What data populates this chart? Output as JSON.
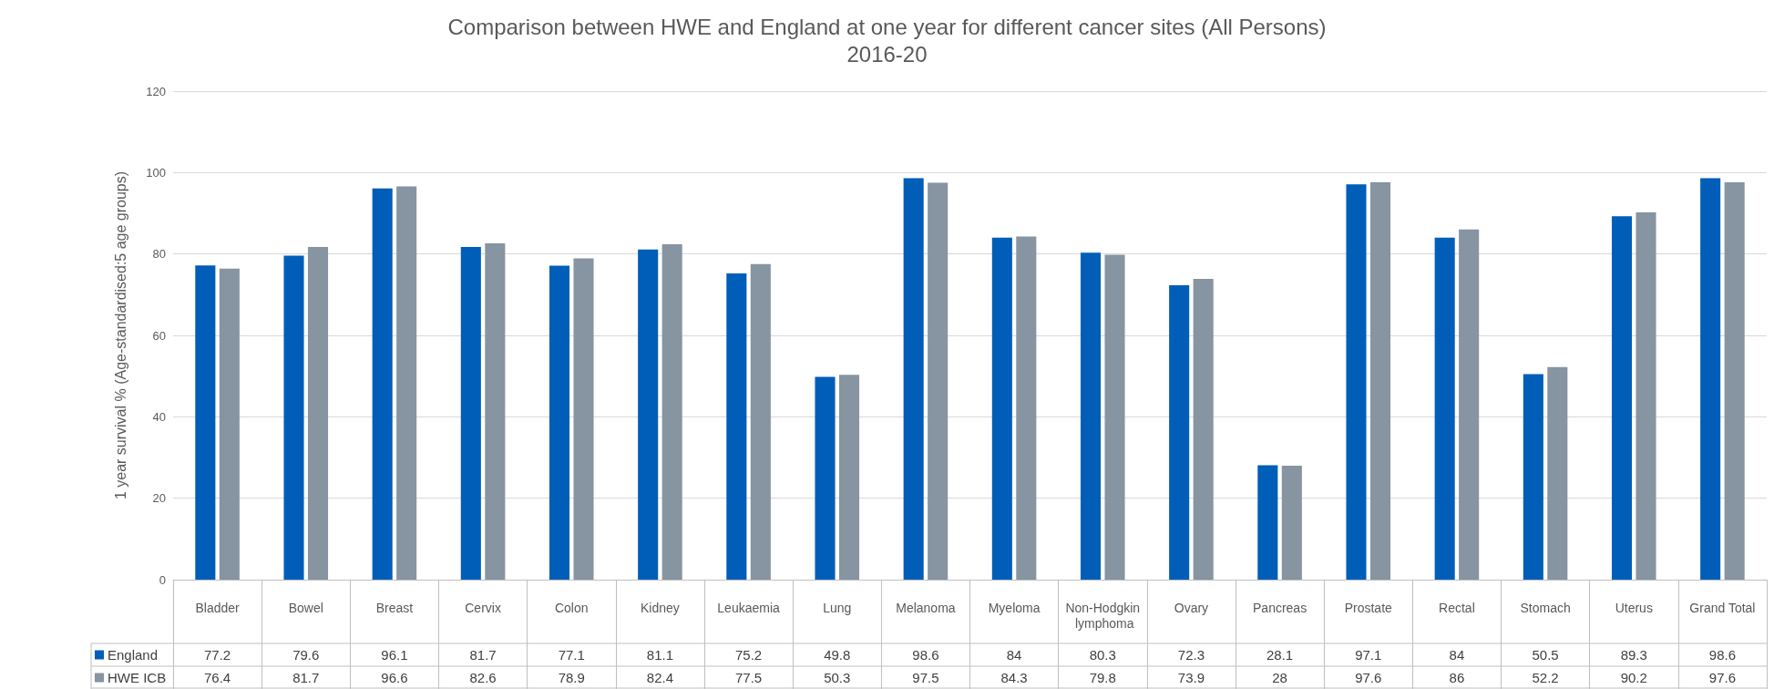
{
  "chart_data": {
    "type": "bar",
    "title": "Comparison between HWE and England at one year for different cancer sites (All Persons)",
    "subtitle": "2016-20",
    "ylabel": "1 year survival % (Age-standardised:5 age groups)",
    "categories": [
      "Bladder",
      "Bowel",
      "Breast",
      "Cervix",
      "Colon",
      "Kidney",
      "Leukaemia",
      "Lung",
      "Melanoma",
      "Myeloma",
      "Non-Hodgkin lymphoma",
      "Ovary",
      "Pancreas",
      "Prostate",
      "Rectal",
      "Stomach",
      "Uterus",
      "Grand Total"
    ],
    "series": [
      {
        "name": "England",
        "color": "#005eb8",
        "values": [
          77.2,
          79.6,
          96.1,
          81.7,
          77.1,
          81.1,
          75.2,
          49.8,
          98.6,
          84,
          80.3,
          72.3,
          28.1,
          97.1,
          84,
          50.5,
          89.3,
          98.6
        ]
      },
      {
        "name": "HWE ICB",
        "color": "#8794a1",
        "values": [
          76.4,
          81.7,
          96.6,
          82.6,
          78.9,
          82.4,
          77.5,
          50.3,
          97.5,
          84.3,
          79.8,
          73.9,
          28,
          97.6,
          86,
          52.2,
          90.2,
          97.6
        ]
      }
    ],
    "ylim": [
      0,
      120
    ],
    "yticks": [
      0,
      20,
      40,
      60,
      80,
      100,
      120
    ],
    "grid": "y",
    "legend": "bottom",
    "data_labels": true
  }
}
